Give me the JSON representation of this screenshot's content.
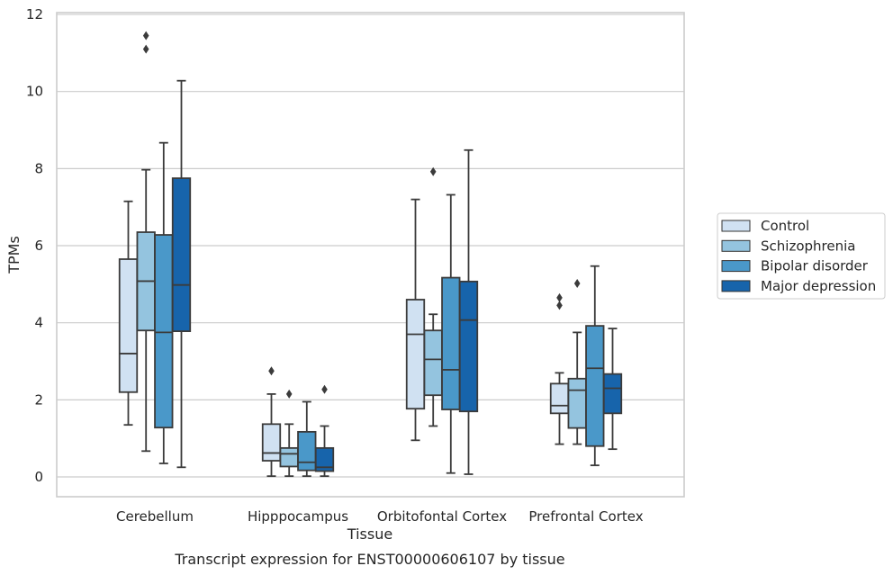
{
  "chart_data": {
    "type": "box",
    "title": "",
    "xlabel": "Tissue",
    "ylabel": "TPMs",
    "caption": "Transcript expression for ENST00000606107 by tissue",
    "ylim": [
      -0.55,
      12.05
    ],
    "yticks": [
      0,
      2,
      4,
      6,
      8,
      10,
      12
    ],
    "grid": "horizontal",
    "legend_position": "right",
    "categories": [
      "Cerebellum",
      "Hipppocampus",
      "Orbitofontal Cortex",
      "Prefrontal Cortex"
    ],
    "series": [
      {
        "name": "Control",
        "color": "#d0e1f2",
        "boxes": [
          {
            "whislo": 1.35,
            "q1": 2.2,
            "med": 3.2,
            "q3": 5.65,
            "whishi": 7.15,
            "fliers": []
          },
          {
            "whislo": 0.02,
            "q1": 0.42,
            "med": 0.62,
            "q3": 1.37,
            "whishi": 2.15,
            "fliers": [
              2.75
            ]
          },
          {
            "whislo": 0.95,
            "q1": 1.77,
            "med": 3.7,
            "q3": 4.6,
            "whishi": 7.2,
            "fliers": []
          },
          {
            "whislo": 0.85,
            "q1": 1.65,
            "med": 1.85,
            "q3": 2.42,
            "whishi": 2.7,
            "fliers": [
              4.45,
              4.65
            ]
          }
        ]
      },
      {
        "name": "Schizophrenia",
        "color": "#94c4df",
        "boxes": [
          {
            "whislo": 0.67,
            "q1": 3.8,
            "med": 5.08,
            "q3": 6.35,
            "whishi": 7.97,
            "fliers": [
              11.1,
              11.45
            ]
          },
          {
            "whislo": 0.02,
            "q1": 0.27,
            "med": 0.6,
            "q3": 0.75,
            "whishi": 1.37,
            "fliers": [
              2.15
            ]
          },
          {
            "whislo": 1.32,
            "q1": 2.12,
            "med": 3.05,
            "q3": 3.8,
            "whishi": 4.22,
            "fliers": [
              7.92
            ]
          },
          {
            "whislo": 0.85,
            "q1": 1.27,
            "med": 2.25,
            "q3": 2.55,
            "whishi": 3.75,
            "fliers": [
              5.02
            ]
          }
        ]
      },
      {
        "name": "Bipolar disorder",
        "color": "#4a98c9",
        "boxes": [
          {
            "whislo": 0.35,
            "q1": 1.28,
            "med": 3.75,
            "q3": 6.28,
            "whishi": 8.67,
            "fliers": []
          },
          {
            "whislo": 0.02,
            "q1": 0.17,
            "med": 0.38,
            "q3": 1.17,
            "whishi": 1.95,
            "fliers": []
          },
          {
            "whislo": 0.1,
            "q1": 1.75,
            "med": 2.78,
            "q3": 5.17,
            "whishi": 7.32,
            "fliers": []
          },
          {
            "whislo": 0.3,
            "q1": 0.8,
            "med": 2.82,
            "q3": 3.92,
            "whishi": 5.47,
            "fliers": []
          }
        ]
      },
      {
        "name": "Major depression",
        "color": "#1764ab",
        "boxes": [
          {
            "whislo": 0.25,
            "q1": 3.78,
            "med": 4.98,
            "q3": 7.75,
            "whishi": 10.28,
            "fliers": []
          },
          {
            "whislo": 0.02,
            "q1": 0.15,
            "med": 0.25,
            "q3": 0.75,
            "whishi": 1.32,
            "fliers": [
              2.27
            ]
          },
          {
            "whislo": 0.07,
            "q1": 1.7,
            "med": 4.07,
            "q3": 5.07,
            "whishi": 8.48,
            "fliers": []
          },
          {
            "whislo": 0.72,
            "q1": 1.65,
            "med": 2.3,
            "q3": 2.67,
            "whishi": 3.85,
            "fliers": []
          }
        ]
      }
    ]
  }
}
